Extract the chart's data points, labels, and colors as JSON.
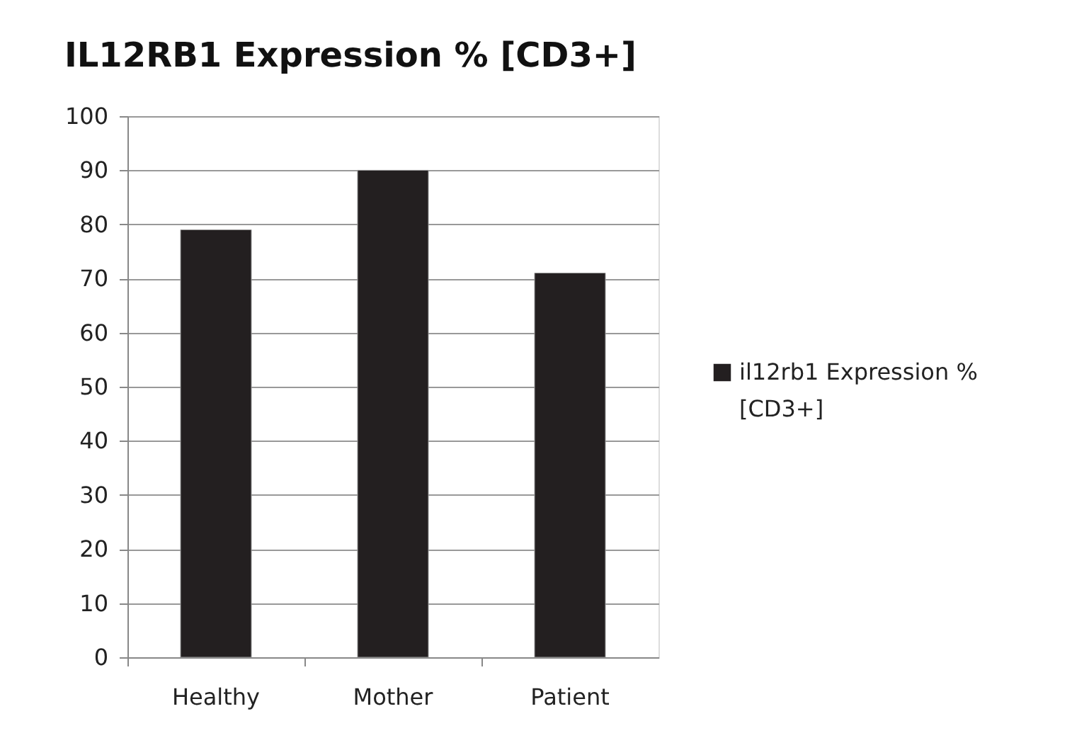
{
  "chart_data": {
    "type": "bar",
    "title": "IL12RB1 Expression % [CD3+]",
    "categories": [
      "Healthy",
      "Mother",
      "Patient"
    ],
    "series": [
      {
        "name": "il12rb1 Expression % [CD3+]",
        "color": "#231f20",
        "values": [
          79,
          90,
          71
        ]
      }
    ],
    "ylim": [
      0,
      100
    ],
    "yticks": [
      0,
      10,
      20,
      30,
      40,
      50,
      60,
      70,
      80,
      90,
      100
    ],
    "grid": "y",
    "legend": "right"
  }
}
